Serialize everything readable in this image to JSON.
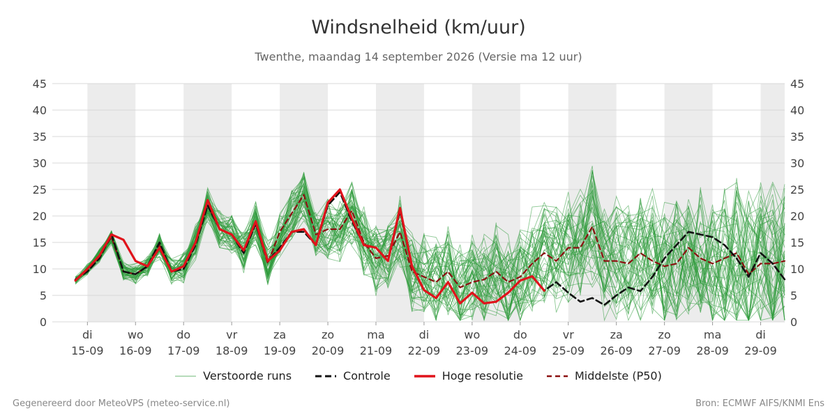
{
  "colors": {
    "ensemble": "#2e9a3a",
    "control": "#111111",
    "hires": "#e0131b",
    "median": "#8b1010",
    "shade": "#ececec",
    "grid": "#d9d9d9"
  },
  "footer": {
    "left": "Gegenereerd door MeteoVPS (meteo-service.nl)",
    "right": "Bron: ECMWF AIFS/KNMI Ens"
  },
  "chart_data": {
    "type": "line",
    "title": "Windsnelheid (km/uur)",
    "subtitle": "Twenthe, maandag 14 september 2026 (Versie ma 12 uur)",
    "ylim": [
      0,
      45
    ],
    "yticks": [
      0,
      5,
      10,
      15,
      20,
      25,
      30,
      35,
      40,
      45
    ],
    "xlim": [
      -0.73,
      14.5
    ],
    "grid": true,
    "legend_position": "bottom",
    "day_ticks": [
      {
        "day": "di",
        "date": "15-09"
      },
      {
        "day": "wo",
        "date": "16-09"
      },
      {
        "day": "do",
        "date": "17-09"
      },
      {
        "day": "vr",
        "date": "18-09"
      },
      {
        "day": "za",
        "date": "19-09"
      },
      {
        "day": "zo",
        "date": "20-09"
      },
      {
        "day": "ma",
        "date": "21-09"
      },
      {
        "day": "di",
        "date": "22-09"
      },
      {
        "day": "wo",
        "date": "23-09"
      },
      {
        "day": "do",
        "date": "24-09"
      },
      {
        "day": "vr",
        "date": "25-09"
      },
      {
        "day": "za",
        "date": "26-09"
      },
      {
        "day": "zo",
        "date": "27-09"
      },
      {
        "day": "ma",
        "date": "28-09"
      },
      {
        "day": "di",
        "date": "29-09"
      }
    ],
    "shaded_days": [
      0,
      2,
      4,
      6,
      8,
      10,
      12,
      14
    ],
    "legend": [
      {
        "key": "ensemble",
        "label": "Verstoorde runs",
        "style": "thin"
      },
      {
        "key": "control",
        "label": "Controle",
        "style": "dashed"
      },
      {
        "key": "hires",
        "label": "Hoge resolutie",
        "style": "solid"
      },
      {
        "key": "median",
        "label": "Middelste (P50)",
        "style": "dashed"
      }
    ],
    "series": [
      {
        "key": "hires",
        "x": [
          -0.25,
          0,
          0.25,
          0.5,
          0.75,
          1,
          1.25,
          1.5,
          1.75,
          2,
          2.25,
          2.5,
          2.75,
          3,
          3.25,
          3.5,
          3.75,
          4,
          4.25,
          4.5,
          4.75,
          5,
          5.25,
          5.5,
          5.75,
          6,
          6.25,
          6.5,
          6.75,
          7,
          7.25,
          7.5,
          7.75,
          8,
          8.25,
          8.5,
          8.75,
          9,
          9.25,
          9.5
        ],
        "values": [
          7.8,
          10,
          12.5,
          16.5,
          15.5,
          11.5,
          10.5,
          14,
          9.5,
          10.5,
          15,
          23,
          17.5,
          16.5,
          13.5,
          19,
          11.5,
          13.5,
          17,
          17.5,
          14.5,
          22.5,
          25,
          19.5,
          14.5,
          14,
          11.5,
          21.5,
          10.5,
          6,
          4.5,
          7.5,
          3.5,
          5.5,
          3.5,
          3.8,
          5.5,
          7.8,
          8.6,
          5.9
        ]
      },
      {
        "key": "control",
        "x": [
          -0.25,
          0,
          0.25,
          0.5,
          0.75,
          1,
          1.25,
          1.5,
          1.75,
          2,
          2.25,
          2.5,
          2.75,
          3,
          3.25,
          3.5,
          3.75,
          4,
          4.25,
          4.5,
          4.75,
          5,
          5.25,
          5.5,
          5.75,
          6,
          6.25,
          6.5,
          6.75,
          7,
          7.25,
          7.5,
          7.75,
          8,
          8.25,
          8.5,
          8.75,
          9,
          9.25,
          9.5,
          9.75,
          10,
          10.25,
          10.5,
          10.75,
          11,
          11.25,
          11.5,
          11.75,
          12,
          12.25,
          12.5,
          12.75,
          13,
          13.25,
          13.5,
          13.75,
          14,
          14.25,
          14.5
        ],
        "values": [
          8,
          9.5,
          12,
          16.5,
          9.5,
          9,
          10.5,
          15,
          9.5,
          10,
          14.5,
          22,
          17.5,
          16.5,
          13,
          18.5,
          11.5,
          14,
          17,
          17,
          14.5,
          22,
          24.5,
          19,
          14.5,
          14,
          11.5,
          21,
          10.5,
          6,
          4.5,
          7.5,
          3.5,
          5.5,
          3.5,
          3.8,
          5.5,
          7.8,
          8.6,
          5.9,
          7.5,
          5.5,
          3.8,
          4.5,
          3.2,
          5,
          6.5,
          5.8,
          8.5,
          12,
          14.5,
          17,
          16.5,
          16,
          14.5,
          12,
          8.5,
          13,
          11,
          8
        ]
      },
      {
        "key": "median",
        "x": [
          -0.25,
          0,
          0.25,
          0.5,
          0.75,
          1,
          1.25,
          1.5,
          1.75,
          2,
          2.25,
          2.5,
          2.75,
          3,
          3.25,
          3.5,
          3.75,
          4,
          4.25,
          4.5,
          4.75,
          5,
          5.25,
          5.5,
          5.75,
          6,
          6.25,
          6.5,
          6.75,
          7,
          7.25,
          7.5,
          7.75,
          8,
          8.25,
          8.5,
          8.75,
          9,
          9.25,
          9.5,
          9.75,
          10,
          10.25,
          10.5,
          10.75,
          11,
          11.25,
          11.5,
          11.75,
          12,
          12.25,
          12.5,
          12.75,
          13,
          13.25,
          13.5,
          13.75,
          14,
          14.25,
          14.5
        ],
        "values": [
          7.8,
          10,
          12.5,
          16,
          9.5,
          9,
          10.5,
          14.5,
          9.5,
          10.5,
          15,
          22,
          17.5,
          16.5,
          13.5,
          18.5,
          11,
          17,
          20.5,
          24,
          16.5,
          17.5,
          17.5,
          21,
          15,
          12,
          12.5,
          17,
          9.5,
          8.5,
          7.5,
          9.5,
          6.5,
          7.5,
          8,
          9.5,
          7.5,
          8.5,
          11,
          13,
          11.5,
          14,
          14,
          18,
          11.5,
          11.5,
          11,
          13,
          11.5,
          10.5,
          11,
          14,
          12,
          11,
          12,
          13,
          9,
          11,
          11,
          11.5
        ]
      }
    ]
  }
}
